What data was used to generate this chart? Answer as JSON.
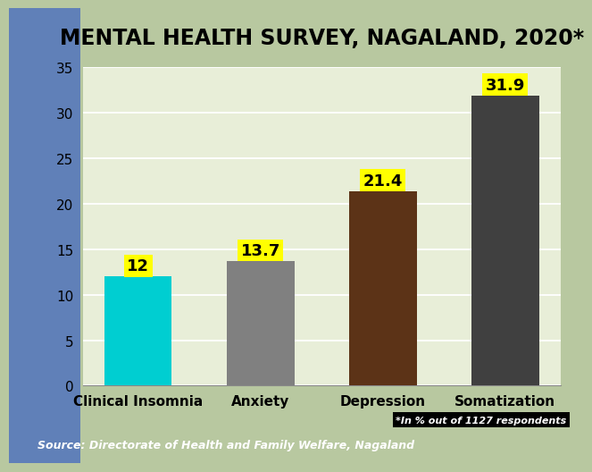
{
  "title": "MENTAL HEALTH SURVEY, NAGALAND, 2020*",
  "categories": [
    "Clinical Insomnia",
    "Anxiety",
    "Depression",
    "Somatization"
  ],
  "values": [
    12,
    13.7,
    21.4,
    31.9
  ],
  "bar_colors": [
    "#00CED1",
    "#808080",
    "#5C3317",
    "#404040"
  ],
  "ylim": [
    0,
    35
  ],
  "yticks": [
    0,
    5,
    10,
    15,
    20,
    25,
    30,
    35
  ],
  "label_bg_color": "#FFFF00",
  "title_bg_color": "#1E90FF",
  "title_fontsize": 17,
  "bar_label_fontsize": 13,
  "xlabel_fontsize": 11,
  "source_text": "Source: Directorate of Health and Family Welfare, Nagaland",
  "source_bg_color": "#4169CD",
  "source_text_color": "#FFFFFF",
  "note_text": "*In % out of 1127 respondents",
  "note_bg_color": "#000000",
  "note_text_color": "#FFFFFF",
  "fig_bg_color": "#B8C8A0",
  "plot_bg_color": "#E8EED8",
  "left_strip_color": "#6080B8",
  "grid_color": "#FFFFFF",
  "border_color": "#4060A0"
}
